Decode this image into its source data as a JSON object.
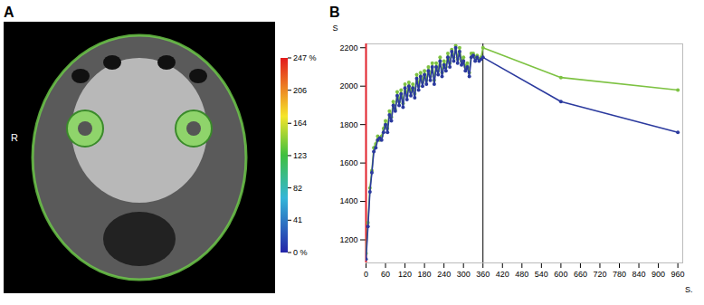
{
  "image": {
    "panel_label": "A",
    "orientation_label": "R",
    "colorbar": {
      "range": [
        0,
        247
      ],
      "ticks": [
        {
          "value": 247,
          "label": "247 %"
        },
        206,
        164,
        123,
        82,
        41,
        {
          "value": 0,
          "label": "0 %"
        }
      ]
    }
  },
  "chart_data": {
    "type": "line",
    "panel_label": "B",
    "y_label": "S",
    "x_label": "S.",
    "x": [
      0,
      6,
      12,
      18,
      24,
      30,
      36,
      42,
      48,
      54,
      60,
      66,
      72,
      78,
      84,
      90,
      96,
      102,
      108,
      114,
      120,
      126,
      132,
      138,
      144,
      150,
      156,
      162,
      168,
      174,
      180,
      186,
      192,
      198,
      204,
      210,
      216,
      222,
      228,
      234,
      240,
      246,
      252,
      258,
      264,
      270,
      276,
      282,
      288,
      294,
      300,
      306,
      312,
      318,
      324,
      330,
      336,
      342,
      348,
      354,
      360,
      600,
      960
    ],
    "series": [
      {
        "color": "#7dc242",
        "marker": "circle",
        "values": [
          1130,
          1290,
          1470,
          1560,
          1680,
          1700,
          1740,
          1720,
          1740,
          1780,
          1820,
          1780,
          1870,
          1840,
          1920,
          1880,
          1970,
          1920,
          1980,
          1910,
          2010,
          1950,
          2020,
          1970,
          2010,
          1960,
          2060,
          2000,
          2070,
          2020,
          2080,
          2030,
          2100,
          2050,
          2120,
          2030,
          2120,
          2080,
          2150,
          2070,
          2130,
          2100,
          2170,
          2120,
          2190,
          2150,
          2210,
          2140,
          2200,
          2130,
          2150,
          2100,
          2120,
          2070,
          2170,
          2170,
          2150,
          2160,
          2140,
          2150,
          2200,
          2045,
          1980
        ]
      },
      {
        "color": "#2b3a9e",
        "marker": "circle",
        "values": [
          1100,
          1270,
          1450,
          1550,
          1660,
          1680,
          1720,
          1730,
          1720,
          1760,
          1800,
          1760,
          1850,
          1820,
          1900,
          1870,
          1950,
          1900,
          1960,
          1890,
          1990,
          1930,
          2000,
          1950,
          1990,
          1940,
          2040,
          1980,
          2050,
          2000,
          2060,
          2010,
          2080,
          2030,
          2100,
          2010,
          2100,
          2060,
          2130,
          2050,
          2110,
          2080,
          2150,
          2100,
          2180,
          2130,
          2200,
          2120,
          2180,
          2110,
          2130,
          2080,
          2100,
          2050,
          2150,
          2160,
          2130,
          2150,
          2130,
          2140,
          2150,
          1920,
          1760
        ]
      }
    ],
    "xlim": [
      0,
      975
    ],
    "xticks": [
      0,
      60,
      120,
      180,
      240,
      300,
      360,
      420,
      480,
      540,
      600,
      660,
      720,
      780,
      840,
      900,
      960
    ],
    "ylim": [
      1080,
      2220
    ],
    "yticks": [
      1200,
      1400,
      1600,
      1800,
      2000,
      2200
    ],
    "vertical_line": 360
  }
}
